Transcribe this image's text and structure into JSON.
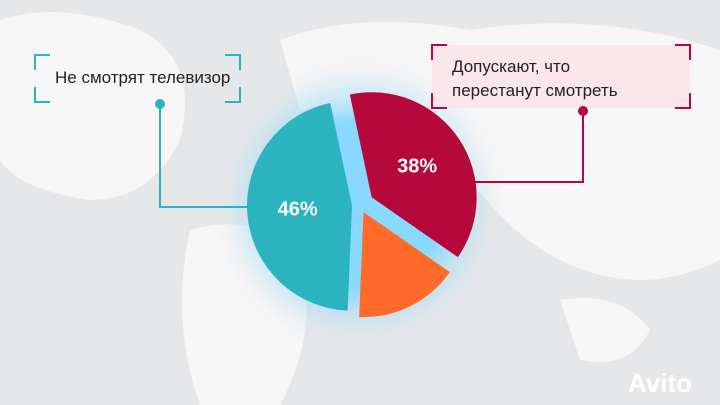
{
  "chart_data": {
    "type": "pie",
    "categories": [
      "Не смотрят телевизор",
      "Допускают, что перестанут смотреть",
      null
    ],
    "values": [
      46,
      38,
      16
    ],
    "value_labels": [
      "46%",
      "38%",
      null
    ],
    "colors": [
      "#2bb3c0",
      "#b5093b",
      "#ff6a2b"
    ]
  },
  "watermark": "Avito"
}
